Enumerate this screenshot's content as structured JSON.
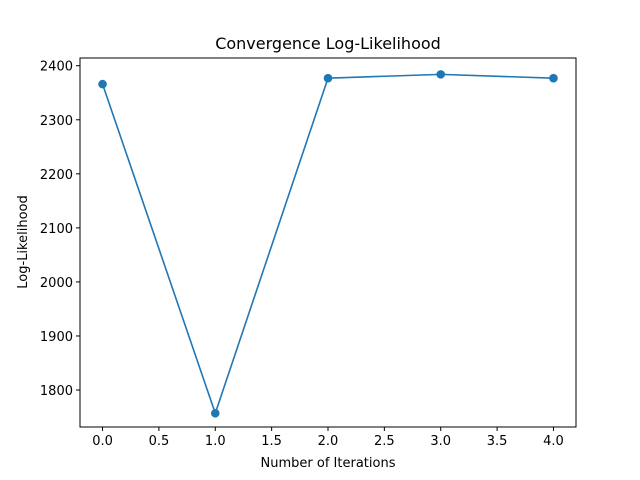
{
  "chart_data": {
    "type": "line",
    "title": "Convergence Log-Likelihood",
    "xlabel": "Number of Iterations",
    "ylabel": "Log-Likelihood",
    "x": [
      0,
      1,
      2,
      3,
      4
    ],
    "series": [
      {
        "values": [
          2366,
          1757,
          2377,
          2384,
          2377
        ],
        "color": "#1f77b4",
        "marker": "circle"
      }
    ],
    "xlim": [
      -0.2,
      4.2
    ],
    "ylim": [
      1731.6,
      2414.3
    ],
    "xticks": [
      0.0,
      0.5,
      1.0,
      1.5,
      2.0,
      2.5,
      3.0,
      3.5,
      4.0
    ],
    "xtick_labels": [
      "0.0",
      "0.5",
      "1.0",
      "1.5",
      "2.0",
      "2.5",
      "3.0",
      "3.5",
      "4.0"
    ],
    "yticks": [
      1800,
      1900,
      2000,
      2100,
      2200,
      2300,
      2400
    ],
    "ytick_labels": [
      "1800",
      "1900",
      "2000",
      "2100",
      "2200",
      "2300",
      "2400"
    ],
    "grid": false,
    "legend": "none"
  }
}
